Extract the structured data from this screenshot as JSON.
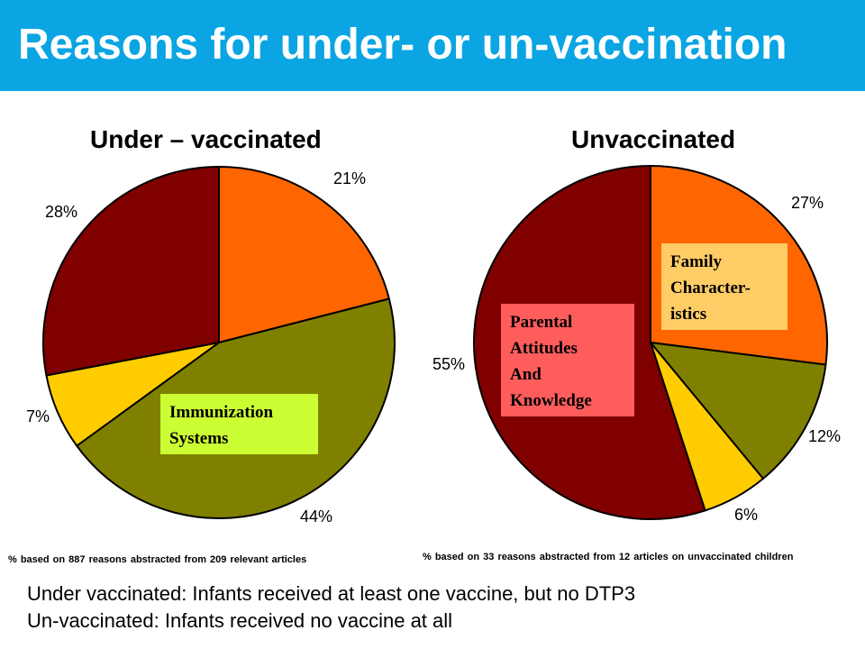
{
  "header": {
    "title": "Reasons for under- or un-vaccination"
  },
  "colors": {
    "banner": "#0aa5e2",
    "orange": "#ff6600",
    "olive": "#808000",
    "yellow": "#ffcc00",
    "maroon": "#800000"
  },
  "chart_data": [
    {
      "type": "pie",
      "title": "Under – vaccinated",
      "start_angle_deg": 0,
      "slices": [
        {
          "value": 21,
          "label": "21%",
          "color": "#ff6600"
        },
        {
          "value": 44,
          "label": "44%",
          "color": "#808000"
        },
        {
          "value": 7,
          "label": "7%",
          "color": "#ffcc00"
        },
        {
          "value": 28,
          "label": "28%",
          "color": "#800000"
        }
      ],
      "callouts": [
        "Immunization Systems"
      ],
      "footnote": "% based on 887 reasons abstracted from 209 relevant articles"
    },
    {
      "type": "pie",
      "title": "Unvaccinated",
      "start_angle_deg": 0,
      "slices": [
        {
          "value": 27,
          "label": "27%",
          "color": "#ff6600"
        },
        {
          "value": 12,
          "label": "12%",
          "color": "#808000"
        },
        {
          "value": 6,
          "label": "6%",
          "color": "#ffcc00"
        },
        {
          "value": 55,
          "label": "55%",
          "color": "#800000"
        }
      ],
      "callouts": [
        "Family Character-istics",
        "Parental Attitudes And Knowledge"
      ],
      "footnote": "% based on 33 reasons abstracted from 12 articles on unvaccinated children"
    }
  ],
  "callouts": {
    "immunization": [
      "Immunization",
      "Systems"
    ],
    "family": [
      "Family",
      "Character-",
      "istics"
    ],
    "parental": [
      "Parental",
      "Attitudes",
      "And",
      "Knowledge"
    ]
  },
  "definitions": {
    "under": "Under vaccinated: Infants received at least one vaccine, but no DTP3",
    "un": "Un-vaccinated: Infants received no vaccine at all"
  }
}
